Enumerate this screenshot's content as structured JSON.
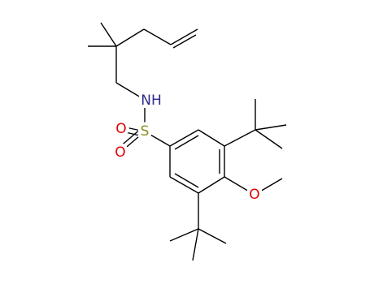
{
  "atoms": {
    "nh": "NH",
    "s": "S",
    "o_top": "O",
    "o_bottom": "O",
    "o_methoxy": "O"
  }
}
